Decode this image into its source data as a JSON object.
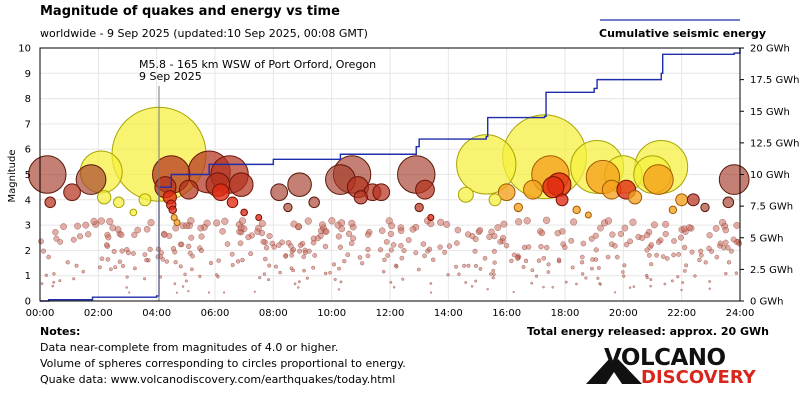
{
  "header": {
    "title": "Magnitude of quakes and energy vs time",
    "subtitle": "worldwide -  9 Sep 2025 (updated:10 Sep 2025, 00:08 GMT)",
    "legend_label": "Cumulative seismic energy"
  },
  "footer": {
    "notes_heading": "Notes:",
    "notes": [
      "Data near-complete from magnitudes of 4.0 or higher.",
      "Volume of spheres corresponding to circles proportional to energy.",
      "Quake data: www.volcanodiscovery.com/earthquakes/today.html"
    ],
    "total_energy": "Total energy released: approx. 20 GWh",
    "logo_line1": "VOLCANO",
    "logo_line2": "DISCOVERY"
  },
  "chart_data": {
    "type": "scatter",
    "xlim": [
      0,
      24
    ],
    "ylim": [
      0,
      10
    ],
    "y2lim": [
      0,
      20
    ],
    "ylabel": "Magnitude",
    "x_ticks": [
      "00:00",
      "02:00",
      "04:00",
      "06:00",
      "08:00",
      "10:00",
      "12:00",
      "14:00",
      "16:00",
      "18:00",
      "20:00",
      "22:00",
      "24:00"
    ],
    "y_ticks": [
      "0",
      "1",
      "2",
      "3",
      "4",
      "5",
      "6",
      "7",
      "8",
      "9",
      "10"
    ],
    "y2_ticks": [
      "0 GWh",
      "2.5 GWh",
      "5 GWh",
      "7.5 GWh",
      "10 GWh",
      "12.5 GWh",
      "15 GWh",
      "17.5 GWh",
      "20 GWh"
    ],
    "grid": true,
    "colors": {
      "yellow": "#f5f03c",
      "orange": "#f5a01e",
      "red": "#e02a12",
      "darkred": "#b4321e",
      "brown": "#a03c28",
      "energy_line": "#1e2daa",
      "grid": "#e6e6e6"
    },
    "annotation": {
      "line1": "M5.8 - 165 km WSW of Port Orford, Oregon",
      "line2": "9 Sep 2025",
      "x": 4.08,
      "y": 5.8
    },
    "quakes": [
      {
        "x": 0.25,
        "y": 5.0,
        "c": "brown"
      },
      {
        "x": 0.35,
        "y": 3.9,
        "c": "darkred"
      },
      {
        "x": 1.1,
        "y": 4.3,
        "c": "darkred"
      },
      {
        "x": 1.75,
        "y": 4.8,
        "c": "brown"
      },
      {
        "x": 2.1,
        "y": 5.1,
        "c": "yellow"
      },
      {
        "x": 2.2,
        "y": 4.1,
        "c": "yellow"
      },
      {
        "x": 2.7,
        "y": 3.9,
        "c": "yellow"
      },
      {
        "x": 3.2,
        "y": 3.5,
        "c": "yellow"
      },
      {
        "x": 3.6,
        "y": 4.0,
        "c": "yellow"
      },
      {
        "x": 4.08,
        "y": 5.8,
        "c": "yellow"
      },
      {
        "x": 4.5,
        "y": 5.0,
        "c": "darkred"
      },
      {
        "x": 4.3,
        "y": 4.5,
        "c": "darkred"
      },
      {
        "x": 4.45,
        "y": 4.1,
        "c": "red"
      },
      {
        "x": 4.5,
        "y": 3.8,
        "c": "red"
      },
      {
        "x": 4.55,
        "y": 3.6,
        "c": "red"
      },
      {
        "x": 4.6,
        "y": 3.3,
        "c": "orange"
      },
      {
        "x": 4.7,
        "y": 3.1,
        "c": "orange"
      },
      {
        "x": 5.1,
        "y": 4.4,
        "c": "darkred"
      },
      {
        "x": 5.8,
        "y": 5.1,
        "c": "darkred"
      },
      {
        "x": 6.1,
        "y": 4.6,
        "c": "darkred"
      },
      {
        "x": 6.2,
        "y": 4.3,
        "c": "red"
      },
      {
        "x": 6.5,
        "y": 5.0,
        "c": "darkred"
      },
      {
        "x": 6.9,
        "y": 4.6,
        "c": "darkred"
      },
      {
        "x": 6.6,
        "y": 3.9,
        "c": "red"
      },
      {
        "x": 7.0,
        "y": 3.5,
        "c": "red"
      },
      {
        "x": 7.5,
        "y": 3.3,
        "c": "red"
      },
      {
        "x": 8.2,
        "y": 4.3,
        "c": "brown"
      },
      {
        "x": 8.5,
        "y": 3.7,
        "c": "brown"
      },
      {
        "x": 8.9,
        "y": 4.6,
        "c": "brown"
      },
      {
        "x": 9.4,
        "y": 3.9,
        "c": "brown"
      },
      {
        "x": 10.3,
        "y": 4.8,
        "c": "brown"
      },
      {
        "x": 10.7,
        "y": 5.0,
        "c": "brown"
      },
      {
        "x": 10.9,
        "y": 4.5,
        "c": "darkred"
      },
      {
        "x": 11.0,
        "y": 4.1,
        "c": "darkred"
      },
      {
        "x": 11.4,
        "y": 4.3,
        "c": "darkred"
      },
      {
        "x": 11.7,
        "y": 4.3,
        "c": "darkred"
      },
      {
        "x": 12.9,
        "y": 5.0,
        "c": "brown"
      },
      {
        "x": 13.0,
        "y": 3.7,
        "c": "darkred"
      },
      {
        "x": 13.2,
        "y": 4.4,
        "c": "darkred"
      },
      {
        "x": 13.4,
        "y": 3.3,
        "c": "red"
      },
      {
        "x": 14.6,
        "y": 4.2,
        "c": "yellow"
      },
      {
        "x": 15.3,
        "y": 5.4,
        "c": "yellow"
      },
      {
        "x": 15.6,
        "y": 4.0,
        "c": "yellow"
      },
      {
        "x": 16.0,
        "y": 4.3,
        "c": "orange"
      },
      {
        "x": 16.4,
        "y": 3.7,
        "c": "orange"
      },
      {
        "x": 16.9,
        "y": 4.4,
        "c": "orange"
      },
      {
        "x": 17.3,
        "y": 5.7,
        "c": "yellow"
      },
      {
        "x": 17.5,
        "y": 5.0,
        "c": "orange"
      },
      {
        "x": 17.6,
        "y": 4.5,
        "c": "red"
      },
      {
        "x": 17.8,
        "y": 4.6,
        "c": "red"
      },
      {
        "x": 17.9,
        "y": 4.0,
        "c": "red"
      },
      {
        "x": 18.4,
        "y": 3.6,
        "c": "orange"
      },
      {
        "x": 18.8,
        "y": 3.4,
        "c": "orange"
      },
      {
        "x": 19.1,
        "y": 5.3,
        "c": "yellow"
      },
      {
        "x": 19.3,
        "y": 4.9,
        "c": "orange"
      },
      {
        "x": 19.6,
        "y": 4.4,
        "c": "orange"
      },
      {
        "x": 20.0,
        "y": 5.0,
        "c": "yellow"
      },
      {
        "x": 20.1,
        "y": 4.4,
        "c": "red"
      },
      {
        "x": 20.4,
        "y": 4.1,
        "c": "orange"
      },
      {
        "x": 21.0,
        "y": 5.0,
        "c": "yellow"
      },
      {
        "x": 21.2,
        "y": 4.8,
        "c": "orange"
      },
      {
        "x": 21.3,
        "y": 5.3,
        "c": "yellow"
      },
      {
        "x": 21.7,
        "y": 3.6,
        "c": "orange"
      },
      {
        "x": 22.0,
        "y": 4.0,
        "c": "orange"
      },
      {
        "x": 22.4,
        "y": 4.0,
        "c": "darkred"
      },
      {
        "x": 22.8,
        "y": 3.7,
        "c": "brown"
      },
      {
        "x": 23.6,
        "y": 3.9,
        "c": "brown"
      },
      {
        "x": 23.8,
        "y": 4.8,
        "c": "brown"
      }
    ],
    "small_quakes_count": 420,
    "energy_series": [
      {
        "x": 0,
        "y": 0
      },
      {
        "x": 0.3,
        "y": 0.1
      },
      {
        "x": 1.8,
        "y": 0.3
      },
      {
        "x": 4.0,
        "y": 0.4
      },
      {
        "x": 4.08,
        "y": 1.0
      },
      {
        "x": 4.08,
        "y": 9.0
      },
      {
        "x": 4.5,
        "y": 10.0
      },
      {
        "x": 5.8,
        "y": 10.8
      },
      {
        "x": 8.0,
        "y": 11.2
      },
      {
        "x": 10.3,
        "y": 11.6
      },
      {
        "x": 12.9,
        "y": 12.2
      },
      {
        "x": 13.0,
        "y": 12.8
      },
      {
        "x": 15.3,
        "y": 13.0
      },
      {
        "x": 15.35,
        "y": 14.5
      },
      {
        "x": 17.3,
        "y": 14.6
      },
      {
        "x": 17.35,
        "y": 16.5
      },
      {
        "x": 19.0,
        "y": 16.8
      },
      {
        "x": 19.1,
        "y": 17.5
      },
      {
        "x": 21.3,
        "y": 18.0
      },
      {
        "x": 21.35,
        "y": 19.5
      },
      {
        "x": 23.8,
        "y": 19.6
      },
      {
        "x": 24.0,
        "y": 20.0
      }
    ]
  }
}
